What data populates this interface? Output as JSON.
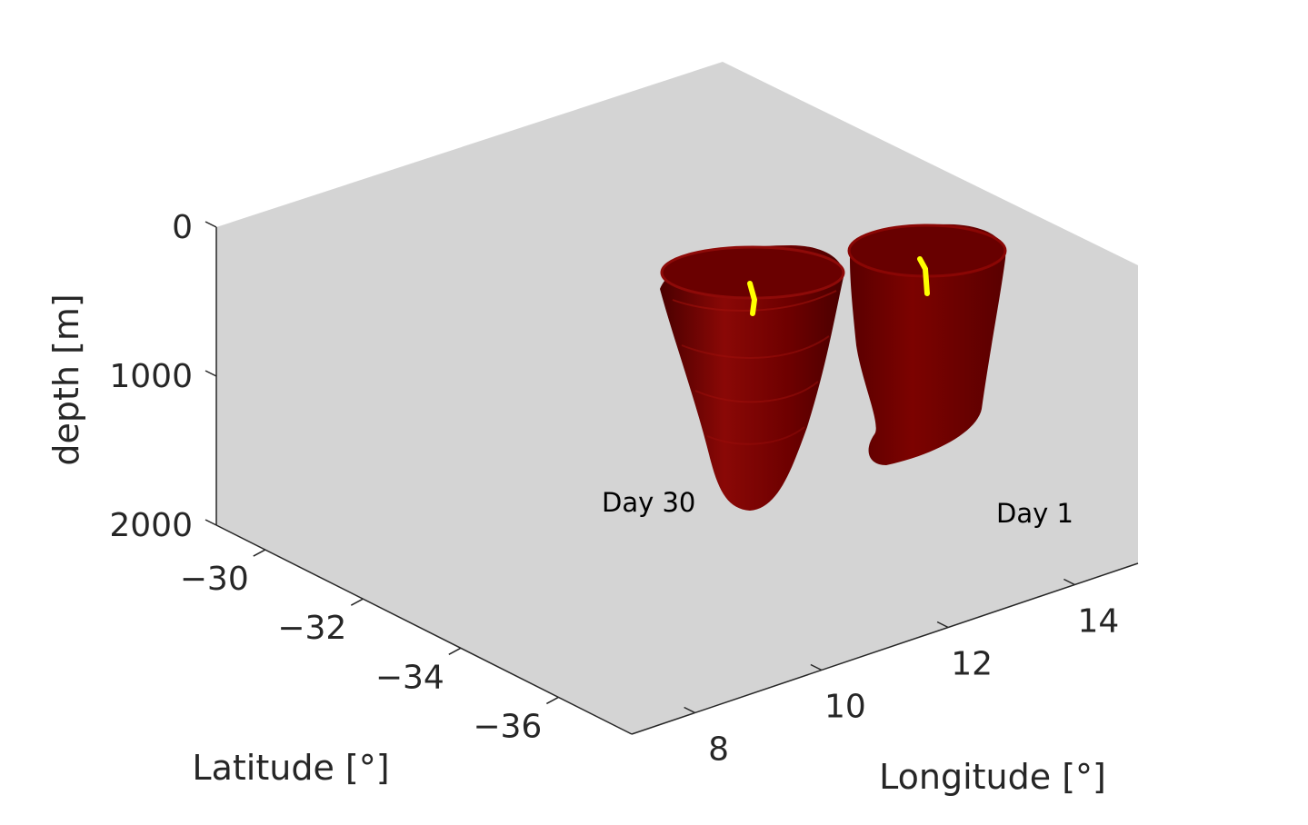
{
  "chart_data": {
    "type": "3d-surface",
    "title": "",
    "xlabel": "Longitude [°]",
    "ylabel": "Latitude [°]",
    "zlabel": "depth [m]",
    "x_ticks": [
      "8",
      "10",
      "12",
      "14"
    ],
    "y_ticks": [
      "-30",
      "-32",
      "-34",
      "-36"
    ],
    "z_ticks": [
      "0",
      "1000",
      "2000"
    ],
    "xlim": [
      7,
      15
    ],
    "ylim": [
      -29,
      -37.5
    ],
    "zlim": [
      0,
      2000
    ],
    "z_reversed": true,
    "grid": false,
    "background_color": "#d4d4d4",
    "surface_color": "#7a0000",
    "track_color": "#ffff00",
    "series": [
      {
        "name": "Day 30",
        "center_lon": 9.2,
        "center_lat": -30.6,
        "top_depth": 300,
        "bottom_depth": 1900
      },
      {
        "name": "Day 1",
        "center_lon": 11.7,
        "center_lat": -29.9,
        "top_depth": 200,
        "bottom_depth": 1600
      }
    ],
    "annotations": [
      {
        "text": "Day 30",
        "lon": 9.2,
        "lat": -31.5,
        "depth": 1900
      },
      {
        "text": "Day 1",
        "lon": 13.4,
        "lat": -30.4,
        "depth": 1900
      }
    ]
  }
}
